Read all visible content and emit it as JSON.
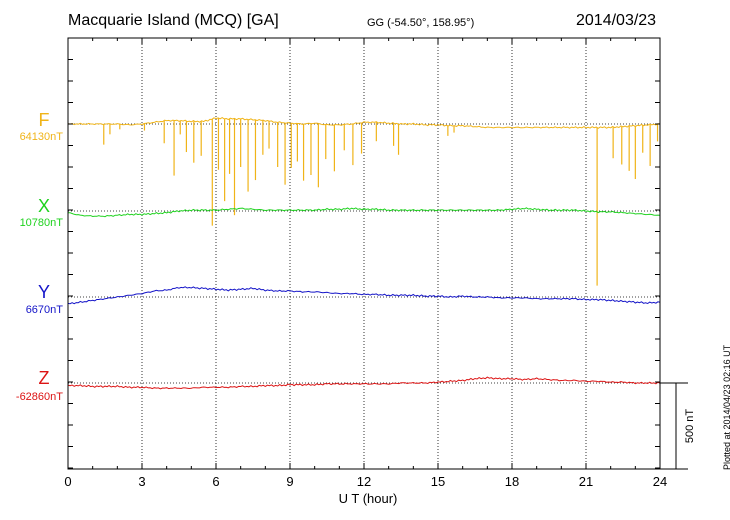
{
  "header": {
    "title": "Macquarie Island (MCQ)  [GA]",
    "coords": "GG (-54.50°, 158.95°)",
    "date": "2014/03/23"
  },
  "plotted_note": "Plotted at 2014/04/23 02:16 UT",
  "colors": {
    "F": "#f0b418",
    "X": "#1ed21e",
    "Y": "#1414c8",
    "Z": "#dc1414"
  },
  "chart_data": {
    "type": "line",
    "title": "Macquarie Island (MCQ)  [GA]",
    "xlabel": "U T (hour)",
    "xlim": [
      0,
      24
    ],
    "x_ticks": [
      "0",
      "3",
      "6",
      "9",
      "12",
      "15",
      "18",
      "21",
      "24"
    ],
    "scale_bar": "500 nT",
    "grid": "dotted vertical",
    "series": [
      {
        "name": "F",
        "baseline_label": "64130nT",
        "x": [
          0,
          0.5,
          1,
          1.5,
          2,
          2.5,
          3,
          3.5,
          4,
          4.5,
          5,
          5.5,
          6,
          6.5,
          7,
          7.5,
          8,
          8.5,
          9,
          9.5,
          10,
          10.5,
          11,
          11.5,
          12,
          12.5,
          13,
          13.5,
          14,
          14.5,
          15,
          15.5,
          16,
          16.5,
          17,
          17.5,
          18,
          18.5,
          19,
          19.5,
          20,
          20.5,
          21,
          21.5,
          22,
          22.5,
          23,
          23.5,
          24
        ],
        "y": [
          0,
          0,
          0,
          0,
          0,
          -5,
          0,
          10,
          20,
          20,
          15,
          15,
          35,
          30,
          30,
          25,
          20,
          10,
          5,
          0,
          5,
          -5,
          -5,
          0,
          10,
          10,
          5,
          0,
          0,
          -5,
          -5,
          -10,
          -10,
          -15,
          -20,
          -20,
          -20,
          -20,
          -20,
          -20,
          -20,
          -20,
          -20,
          -20,
          -20,
          -15,
          -10,
          -5,
          0
        ],
        "spikes": [
          {
            "x": 1.45,
            "dy": -120
          },
          {
            "x": 1.7,
            "dy": -60
          },
          {
            "x": 2.1,
            "dy": -30
          },
          {
            "x": 3.1,
            "dy": -40
          },
          {
            "x": 3.9,
            "dy": -130
          },
          {
            "x": 4.3,
            "dy": -320
          },
          {
            "x": 4.55,
            "dy": -80
          },
          {
            "x": 4.8,
            "dy": -180
          },
          {
            "x": 5.1,
            "dy": -240
          },
          {
            "x": 5.4,
            "dy": -200
          },
          {
            "x": 5.85,
            "dy": -620
          },
          {
            "x": 6.1,
            "dy": -300
          },
          {
            "x": 6.35,
            "dy": -480
          },
          {
            "x": 6.55,
            "dy": -320
          },
          {
            "x": 6.75,
            "dy": -560
          },
          {
            "x": 7.0,
            "dy": -280
          },
          {
            "x": 7.3,
            "dy": -420
          },
          {
            "x": 7.6,
            "dy": -350
          },
          {
            "x": 7.9,
            "dy": -200
          },
          {
            "x": 8.15,
            "dy": -160
          },
          {
            "x": 8.5,
            "dy": -260
          },
          {
            "x": 8.8,
            "dy": -360
          },
          {
            "x": 9.05,
            "dy": -260
          },
          {
            "x": 9.3,
            "dy": -220
          },
          {
            "x": 9.55,
            "dy": -330
          },
          {
            "x": 9.85,
            "dy": -300
          },
          {
            "x": 10.15,
            "dy": -370
          },
          {
            "x": 10.45,
            "dy": -200
          },
          {
            "x": 10.8,
            "dy": -270
          },
          {
            "x": 11.2,
            "dy": -150
          },
          {
            "x": 11.55,
            "dy": -240
          },
          {
            "x": 11.9,
            "dy": -180
          },
          {
            "x": 12.5,
            "dy": -110
          },
          {
            "x": 13.2,
            "dy": -130
          },
          {
            "x": 13.4,
            "dy": -180
          },
          {
            "x": 15.4,
            "dy": -60
          },
          {
            "x": 15.65,
            "dy": -40
          },
          {
            "x": 21.45,
            "dy": -920
          },
          {
            "x": 22.1,
            "dy": -180
          },
          {
            "x": 22.45,
            "dy": -220
          },
          {
            "x": 22.75,
            "dy": -260
          },
          {
            "x": 23.0,
            "dy": -310
          },
          {
            "x": 23.3,
            "dy": -160
          },
          {
            "x": 23.6,
            "dy": -240
          },
          {
            "x": 23.9,
            "dy": -100
          }
        ]
      },
      {
        "name": "X",
        "baseline_label": "10780nT",
        "x": [
          0,
          0.5,
          1,
          1.5,
          2,
          2.5,
          3,
          3.5,
          4,
          4.5,
          5,
          5.5,
          6,
          6.5,
          7,
          7.5,
          8,
          8.5,
          9,
          9.5,
          10,
          10.5,
          11,
          11.5,
          12,
          12.5,
          13,
          13.5,
          14,
          14.5,
          15,
          15.5,
          16,
          16.5,
          17,
          17.5,
          18,
          18.5,
          19,
          19.5,
          20,
          20.5,
          21,
          21.5,
          22,
          22.5,
          23,
          23.5,
          24
        ],
        "y": [
          -10,
          -25,
          -30,
          -30,
          -25,
          -20,
          -20,
          -15,
          -10,
          0,
          5,
          5,
          5,
          10,
          15,
          10,
          5,
          5,
          5,
          5,
          5,
          10,
          10,
          15,
          10,
          10,
          5,
          5,
          5,
          5,
          5,
          5,
          5,
          5,
          5,
          5,
          10,
          15,
          10,
          5,
          5,
          5,
          0,
          -5,
          -5,
          -10,
          -15,
          -20,
          -25
        ]
      },
      {
        "name": "Y",
        "baseline_label": "6670nT",
        "x": [
          0,
          0.5,
          1,
          1.5,
          2,
          2.5,
          3,
          3.5,
          4,
          4.5,
          5,
          5.5,
          6,
          6.5,
          7,
          7.5,
          8,
          8.5,
          9,
          9.5,
          10,
          10.5,
          11,
          11.5,
          12,
          12.5,
          13,
          13.5,
          14,
          14.5,
          15,
          15.5,
          16,
          16.5,
          17,
          17.5,
          18,
          18.5,
          19,
          19.5,
          20,
          20.5,
          21,
          21.5,
          22,
          22.5,
          23,
          23.5,
          24
        ],
        "y": [
          -40,
          -30,
          -20,
          -10,
          0,
          10,
          20,
          35,
          40,
          55,
          55,
          50,
          45,
          40,
          45,
          50,
          40,
          35,
          35,
          30,
          30,
          25,
          20,
          20,
          15,
          15,
          10,
          10,
          10,
          5,
          5,
          0,
          5,
          0,
          0,
          -5,
          -5,
          -5,
          -10,
          -10,
          -10,
          -10,
          -15,
          -15,
          -20,
          -25,
          -30,
          -35,
          -30
        ]
      },
      {
        "name": "Z",
        "baseline_label": "-62860nT",
        "x": [
          0,
          0.5,
          1,
          1.5,
          2,
          2.5,
          3,
          3.5,
          4,
          4.5,
          5,
          5.5,
          6,
          6.5,
          7,
          7.5,
          8,
          8.5,
          9,
          9.5,
          10,
          10.5,
          11,
          11.5,
          12,
          12.5,
          13,
          13.5,
          14,
          14.5,
          15,
          15.5,
          16,
          16.5,
          17,
          17.5,
          18,
          18.5,
          19,
          19.5,
          20,
          20.5,
          21,
          21.5,
          22,
          22.5,
          23,
          23.5,
          24
        ],
        "y": [
          -15,
          -15,
          -20,
          -20,
          -20,
          -25,
          -25,
          -30,
          -30,
          -30,
          -30,
          -25,
          -25,
          -25,
          -20,
          -20,
          -15,
          -15,
          -10,
          -10,
          -10,
          -5,
          -5,
          -5,
          -5,
          -5,
          -5,
          0,
          0,
          0,
          5,
          10,
          15,
          25,
          30,
          25,
          25,
          20,
          25,
          20,
          15,
          15,
          10,
          10,
          5,
          5,
          0,
          0,
          0
        ]
      }
    ]
  }
}
